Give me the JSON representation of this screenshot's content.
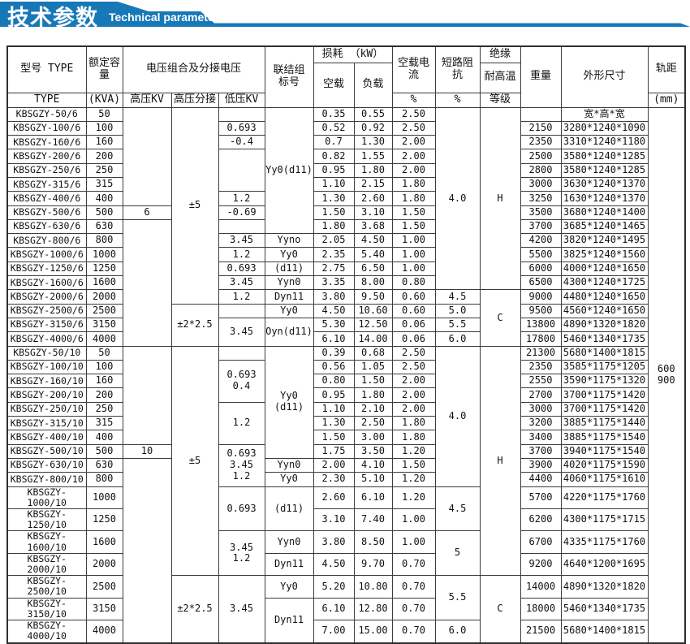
{
  "banner": {
    "title_cn": "技术参数",
    "title_en": "Technical parameter",
    "color": "#1778b8"
  },
  "table": {
    "header_heights": [
      20,
      37,
      18
    ],
    "header": [
      [
        {
          "t": "型号 TYPE",
          "rs": 2
        },
        {
          "t": "额定容量",
          "rs": 2
        },
        {
          "t": "电压组合及分接电压",
          "rs": 2,
          "cs": 3
        },
        {
          "t": "联结组\n标号",
          "rs": 3
        },
        {
          "t": "损耗 （kW）",
          "cs": 2
        },
        {
          "t": "空载电\n流",
          "rs": 2
        },
        {
          "t": "短路阻\n抗",
          "rs": 2
        },
        {
          "t": "绝缘"
        },
        {
          "t": "重量",
          "rs": 3
        },
        {
          "t": "外形尺寸",
          "rs": 3
        },
        {
          "t": "轨距",
          "rs": 2
        }
      ],
      [
        {
          "t": "空载",
          "rs": 2
        },
        {
          "t": "负载",
          "rs": 2
        },
        {
          "t": "耐高温"
        }
      ],
      [
        {
          "t": "TYPE"
        },
        {
          "t": "(KVA)"
        },
        {
          "t": "高压KV"
        },
        {
          "t": "高压分接"
        },
        {
          "t": "低压KV"
        },
        {
          "t": "%"
        },
        {
          "t": "%"
        },
        {
          "t": "等级"
        },
        {
          "t": "(mm)"
        }
      ]
    ],
    "rows": [
      [
        {
          "t": "KBSGZY-50/6"
        },
        {
          "t": "50"
        },
        {
          "t": "",
          "rs": 7
        },
        {
          "t": "±5",
          "rs": 14
        },
        {
          "t": ""
        },
        {
          "t": "Yy0(d11)",
          "rs": 9
        },
        {
          "t": "0.35"
        },
        {
          "t": "0.55"
        },
        {
          "t": "2.50"
        },
        {
          "t": "4.0",
          "rs": 13
        },
        {
          "t": "H",
          "rs": 13
        },
        {
          "t": ""
        },
        {
          "t": "宽*高*宽"
        },
        {
          "t": "600\n900",
          "rs": 34
        }
      ],
      [
        "KBSGZY-100/6",
        "100",
        "0.693",
        "0.52",
        "0.92",
        "2.50",
        "2150",
        "3280*1240*1090"
      ],
      [
        "KBSGZY-160/6",
        "160",
        "-0.4",
        "0.7",
        "1.30",
        "2.00",
        "2350",
        "3310*1240*1180"
      ],
      [
        "KBSGZY-200/6",
        "200",
        {
          "t": "",
          "rs": 3
        },
        "0.82",
        "1.55",
        "2.00",
        "2500",
        "3580*1240*1285"
      ],
      [
        "KBSGZY-250/6",
        "250",
        "0.95",
        "1.80",
        "2.00",
        "2800",
        "3580*1240*1285"
      ],
      [
        "KBSGZY-315/6",
        "315",
        "1.10",
        "2.15",
        "1.80",
        "3000",
        "3630*1240*1370"
      ],
      [
        "KBSGZY-400/6",
        "400",
        "1.2",
        "1.30",
        "2.60",
        "1.80",
        "3250",
        "1630*1240*1370"
      ],
      [
        "KBSGZY-500/6",
        "500",
        "6",
        "-0.69",
        "1.50",
        "3.10",
        "1.50",
        "3500",
        "3680*1240*1400"
      ],
      [
        "KBSGZY-630/6",
        "630",
        {
          "t": "",
          "rs": 9
        },
        {
          "t": ""
        },
        "1.80",
        "3.68",
        "1.50",
        "3700",
        "3685*1240*1465"
      ],
      [
        "KBSGZY-800/6",
        "800",
        "3.45",
        "Yyno",
        "2.05",
        "4.50",
        "1.00",
        "4200",
        "3820*1240*1495"
      ],
      [
        "KBSGZY-1000/6",
        "1000",
        "1.2",
        "Yy0",
        "2.35",
        "5.40",
        "1.00",
        "5500",
        "3825*1240*1560"
      ],
      [
        "KBSGZY-1250/6",
        "1250",
        "0.693",
        "(d11)",
        "2.75",
        "6.50",
        "1.00",
        "6000",
        "4000*1240*1650"
      ],
      [
        "KBSGZY-1600/6",
        "1600",
        "3.45",
        "Yyn0",
        "3.35",
        "8.00",
        "0.80",
        "6500",
        "4300*1240*1725"
      ],
      [
        "KBSGZY-2000/6",
        "2000",
        "1.2",
        "Dyn11",
        "3.80",
        "9.50",
        "0.60",
        "4.5",
        {
          "t": "C",
          "rs": 4
        },
        "9000",
        "4480*1240*1650"
      ],
      [
        "KBSGZY-2500/6",
        "2500",
        {
          "t": "±2*2.5",
          "rs": 3
        },
        {
          "t": ""
        },
        "Yy0",
        "4.50",
        "10.60",
        "0.60",
        "5.0",
        "9500",
        "4560*1240*1650"
      ],
      [
        "KBSGZY-3150/6",
        "3150",
        {
          "t": "3.45",
          "rs": 2
        },
        {
          "t": "Oyn(d11)",
          "rs": 2
        },
        "5.30",
        "12.50",
        "0.06",
        "5.5",
        "13800",
        "4890*1320*1820"
      ],
      [
        "KBSGZY-4000/6",
        "4000",
        "6.10",
        "14.00",
        "0.06",
        "6.0",
        "17800",
        "5460*1340*1735"
      ],
      [
        {
          "t": "KBSGZY-50/10"
        },
        {
          "t": "50"
        },
        {
          "t": "",
          "rs": 7
        },
        {
          "t": "±5",
          "rs": 14
        },
        {
          "t": ""
        },
        {
          "t": "Yy0 (d11)",
          "rs": 8
        },
        {
          "t": "0.39"
        },
        {
          "t": "0.68"
        },
        {
          "t": "2.50"
        },
        {
          "t": "4.0",
          "rs": 10
        },
        {
          "t": "H",
          "rs": 14
        },
        {
          "t": "21300"
        },
        {
          "t": "5680*1400*1815"
        }
      ],
      [
        "KBSGZY-100/10",
        "100",
        {
          "t": "0.693\n0.4",
          "rs": 3
        },
        "0.56",
        "1.05",
        "2.50",
        "2350",
        "3585*1175*1205"
      ],
      [
        "KBSGZY-160/10",
        "160",
        "0.80",
        "1.50",
        "2.00",
        "2550",
        "3590*1175*1320"
      ],
      [
        "KBSGZY-200/10",
        "200",
        "0.95",
        "1.80",
        "2.00",
        "2700",
        "3700*1175*1420"
      ],
      [
        "KBSGZY-250/10",
        "250",
        {
          "t": "1.2",
          "rs": 3
        },
        "1.10",
        "2.10",
        "2.00",
        "3000",
        "3700*1175*1420"
      ],
      [
        "KBSGZY-315/10",
        "315",
        "1.30",
        "2.50",
        "1.80",
        "3200",
        "3885*1175*1440"
      ],
      [
        "KBSGZY-400/10",
        "400",
        "1.50",
        "3.00",
        "1.80",
        "3400",
        "3885*1175*1540"
      ],
      [
        "KBSGZY-500/10",
        "500",
        "10",
        {
          "t": "0.693\n3.45\n1.2",
          "rs": 3
        },
        "1.75",
        "3.50",
        "1.20",
        "3700",
        "3940*1175*1540"
      ],
      [
        "KBSGZY-630/10",
        "630",
        {
          "t": "",
          "rs": 9
        },
        "Yyn0",
        "2.00",
        "4.10",
        "1.50",
        "3900",
        "4020*1175*1590"
      ],
      [
        "KBSGZY-800/10",
        "800",
        "Yy0",
        "2.30",
        "5.10",
        "1.20",
        "4400",
        "4060*1175*1610"
      ],
      [
        "KBSGZY-1000/10",
        "1000",
        {
          "t": "0.693",
          "rs": 2
        },
        {
          "t": "(d11)",
          "rs": 2
        },
        "2.60",
        "6.10",
        "1.20",
        {
          "t": "4.5",
          "rs": 2
        },
        "5700",
        "4220*1175*1760"
      ],
      [
        "KBSGZY-1250/10",
        "1250",
        "3.10",
        "7.40",
        "1.00",
        "6200",
        "4300*1175*1715"
      ],
      [
        "KBSGZY-1600/10",
        "1600",
        {
          "t": "3.45\n1.2",
          "rs": 2
        },
        "Yyn0",
        "3.80",
        "8.50",
        "1.00",
        {
          "t": "5",
          "rs": 2
        },
        "6700",
        "4335*1175*1760"
      ],
      [
        "KBSGZY-2000/10",
        "2000",
        "Dyn11",
        "4.50",
        "9.70",
        "0.70",
        "9200",
        "4640*1200*1695"
      ],
      [
        "KBSGZY-2500/10",
        "2500",
        {
          "t": "±2*2.5",
          "rs": 3
        },
        {
          "t": "3.45",
          "rs": 3
        },
        "Yy0",
        "5.20",
        "10.80",
        "0.70",
        {
          "t": "5.5",
          "rs": 2
        },
        {
          "t": "C",
          "rs": 3
        },
        "14000",
        "4890*1320*1820"
      ],
      [
        "KBSGZY-3150/10",
        "3150",
        {
          "t": "Dyn11",
          "rs": 2
        },
        "6.10",
        "12.80",
        "0.70",
        "18000",
        "5460*1340*1735"
      ],
      [
        "KBSGZY-4000/10",
        "4000",
        "7.00",
        "15.00",
        "0.70",
        "6.0",
        "21500",
        "5680*1400*1815"
      ]
    ]
  }
}
